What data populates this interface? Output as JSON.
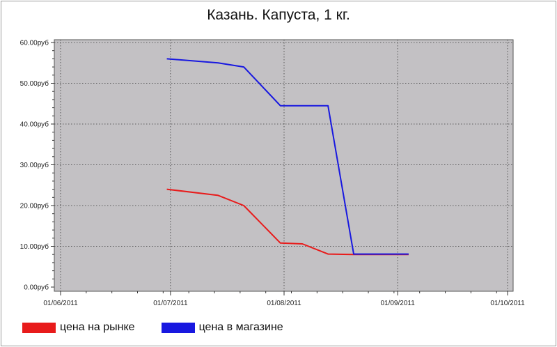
{
  "chart_data": {
    "type": "line",
    "title": "Казань. Капуста, 1 кг.",
    "x_ticks": [
      "01/06/2011",
      "01/07/2011",
      "01/08/2011",
      "01/09/2011",
      "01/10/2011"
    ],
    "xlim": [
      "2011-06-01",
      "2011-10-01"
    ],
    "y_ticks": [
      "0.00руб",
      "10.00руб",
      "20.00руб",
      "30.00руб",
      "40.00руб",
      "50.00руб",
      "60.00руб"
    ],
    "ylim": [
      0,
      60
    ],
    "grid": true,
    "legend_position": "bottom-left",
    "series": [
      {
        "name": "цена на рынке",
        "color": "#e81b1b",
        "points": [
          {
            "x": "2011-06-30",
            "y": 24.0
          },
          {
            "x": "2011-07-14",
            "y": 22.5
          },
          {
            "x": "2011-07-21",
            "y": 20.0
          },
          {
            "x": "2011-07-31",
            "y": 10.8
          },
          {
            "x": "2011-08-06",
            "y": 10.6
          },
          {
            "x": "2011-08-13",
            "y": 8.1
          },
          {
            "x": "2011-08-20",
            "y": 8.0
          },
          {
            "x": "2011-09-04",
            "y": 8.0
          }
        ]
      },
      {
        "name": "цена в магазине",
        "color": "#1818e0",
        "points": [
          {
            "x": "2011-06-30",
            "y": 56.0
          },
          {
            "x": "2011-07-14",
            "y": 55.0
          },
          {
            "x": "2011-07-21",
            "y": 54.0
          },
          {
            "x": "2011-07-31",
            "y": 44.5
          },
          {
            "x": "2011-08-06",
            "y": 44.5
          },
          {
            "x": "2011-08-13",
            "y": 44.5
          },
          {
            "x": "2011-08-20",
            "y": 8.1
          },
          {
            "x": "2011-09-04",
            "y": 8.1
          }
        ]
      }
    ],
    "colors": {
      "plot_background": "#c3c1c4",
      "grid": "#3a3a3a"
    }
  }
}
